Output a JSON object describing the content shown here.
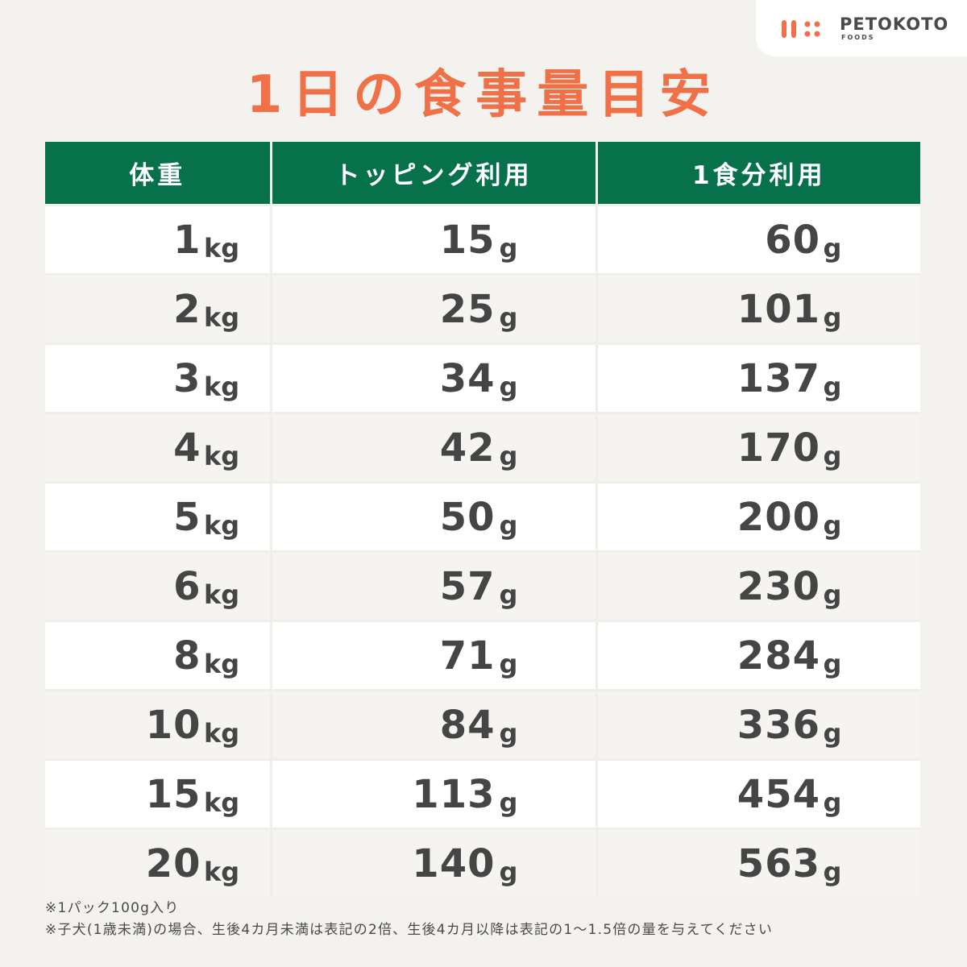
{
  "logo": {
    "name": "PETOKOTO",
    "sub": "FOODS",
    "mark_color": "#f07048"
  },
  "title": "1日の食事量目安",
  "table": {
    "headers": [
      "体重",
      "トッピング利用",
      "1食分利用"
    ],
    "weight_unit": "kg",
    "food_unit": "g",
    "rows": [
      {
        "weight": "1",
        "topping": "15",
        "full": "60"
      },
      {
        "weight": "2",
        "topping": "25",
        "full": "101"
      },
      {
        "weight": "3",
        "topping": "34",
        "full": "137"
      },
      {
        "weight": "4",
        "topping": "42",
        "full": "170"
      },
      {
        "weight": "5",
        "topping": "50",
        "full": "200"
      },
      {
        "weight": "6",
        "topping": "57",
        "full": "230"
      },
      {
        "weight": "8",
        "topping": "71",
        "full": "284"
      },
      {
        "weight": "10",
        "topping": "84",
        "full": "336"
      },
      {
        "weight": "15",
        "topping": "113",
        "full": "454"
      },
      {
        "weight": "20",
        "topping": "140",
        "full": "563"
      }
    ]
  },
  "notes": [
    "※1パック100g入り",
    "※子犬(1歳未満)の場合、生後4カ月未満は表記の2倍、生後4カ月以降は表記の1～1.5倍の量を与えてください"
  ],
  "colors": {
    "header_green": "#06714a",
    "title_orange": "#f07048",
    "background": "#f4f2ee"
  }
}
